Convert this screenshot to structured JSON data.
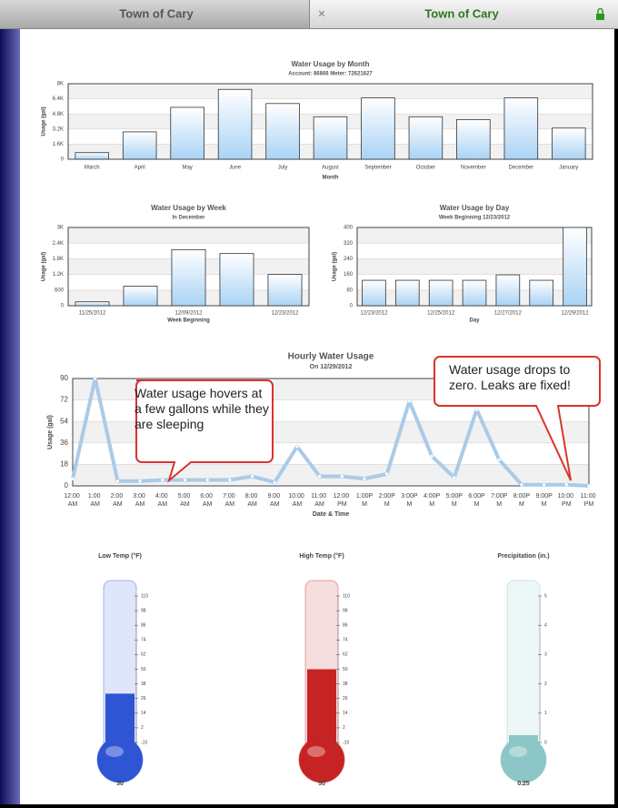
{
  "tabs": [
    "Town of Cary",
    "Town of Cary"
  ],
  "chart_data": [
    {
      "type": "bar",
      "title": "Water Usage by Month",
      "subtitle": "Account: 86866 Meter: 72621827",
      "y_label": "Usage (gal)",
      "x_label": "Month",
      "color": "#a9d3f5",
      "categories": [
        "March",
        "April",
        "May",
        "June",
        "July",
        "August",
        "September",
        "October",
        "November",
        "December",
        "January"
      ],
      "values": [
        700,
        2900,
        5500,
        7400,
        5900,
        4500,
        6500,
        4500,
        4200,
        6500,
        3300
      ],
      "ylim": [
        0,
        8000
      ],
      "yticks": [
        0,
        {
          "value": 1600,
          "label": "1.6K"
        },
        {
          "value": 3200,
          "label": "3.2K"
        },
        {
          "value": 4800,
          "label": "4.8K"
        },
        {
          "value": 6400,
          "label": "6.4K"
        },
        {
          "value": 8000,
          "label": "8K"
        }
      ]
    },
    {
      "type": "bar",
      "title": "Water Usage by Week",
      "subtitle": "In December",
      "y_label": "Usage (gal)",
      "x_label": "Week Beginning",
      "color": "#a9d3f5",
      "categories": [
        "11/25/2012",
        null,
        "12/09/2012",
        null,
        "12/23/2012"
      ],
      "values": [
        150,
        750,
        2150,
        2000,
        1200
      ],
      "ylim": [
        0,
        3000
      ],
      "yticks": [
        0,
        600,
        {
          "value": 1200,
          "label": "1.2K"
        },
        {
          "value": 1800,
          "label": "1.8K"
        },
        {
          "value": 2400,
          "label": "2.4K"
        },
        {
          "value": 3000,
          "label": "3K"
        }
      ]
    },
    {
      "type": "bar",
      "title": "Water Usage by Day",
      "subtitle": "Week Beginning 12/23/2012",
      "y_label": "Usage (gal)",
      "x_label": "Day",
      "color": "#a9d3f5",
      "categories": [
        "12/23/2012",
        null,
        "12/25/2012",
        null,
        "12/27/2012",
        null,
        "12/29/2012"
      ],
      "values": [
        130,
        130,
        130,
        130,
        158,
        130,
        400
      ],
      "ylim": [
        0,
        400
      ],
      "yticks": [
        0,
        80,
        160,
        240,
        320,
        400
      ]
    },
    {
      "type": "line",
      "title": "Hourly Water Usage",
      "subtitle": "On 12/29/2012",
      "y_label": "Usage (gal)",
      "x_label": "Date & Time",
      "color": "#a9cbe9",
      "categories": [
        "12:00 AM",
        "1:00 AM",
        "2:00 AM",
        "3:00 AM",
        "4:00 AM",
        "5:00 AM",
        "6:00 AM",
        "7:00 AM",
        "8:00 AM",
        "9:00 AM",
        "10:00 AM",
        "11:00 AM",
        "12:00 PM",
        "1:00PM",
        "2:00PM",
        "3:00PM",
        "4:00PM",
        "5:00PM",
        "6:00PM",
        "7:00PM",
        "8:00PM",
        "9:00PM",
        "10:00 PM",
        "11:00 PM"
      ],
      "values": [
        6,
        90,
        4,
        4,
        5,
        5,
        5,
        5,
        8,
        3,
        33,
        8,
        8,
        6,
        10,
        71,
        25,
        7,
        64,
        22,
        1,
        1,
        1,
        0
      ],
      "ylim": [
        0,
        90
      ],
      "yticks": [
        0,
        18,
        36,
        54,
        72,
        90
      ]
    }
  ],
  "callouts": [
    "Water usage hovers at a few gallons while they are sleeping",
    "Water usage drops to zero. Leaks are fixed!"
  ],
  "gauges": [
    {
      "title": "Low Temp (°F)",
      "value": 30,
      "color": "#2f55d4",
      "lim": [
        -10,
        110
      ],
      "ticks": [
        -10,
        2,
        14,
        26,
        38,
        50,
        62,
        74,
        86,
        98,
        110
      ]
    },
    {
      "title": "High Temp (°F)",
      "value": 50,
      "color": "#c62424",
      "lim": [
        -10,
        110
      ],
      "ticks": [
        -10,
        2,
        14,
        26,
        38,
        50,
        62,
        74,
        86,
        98,
        110
      ]
    },
    {
      "title": "Precipitation (in.)",
      "value": 0.25,
      "color": "#8cc6c6",
      "lim": [
        0,
        5
      ],
      "ticks": [
        0,
        1,
        2,
        3,
        4,
        5
      ]
    }
  ]
}
